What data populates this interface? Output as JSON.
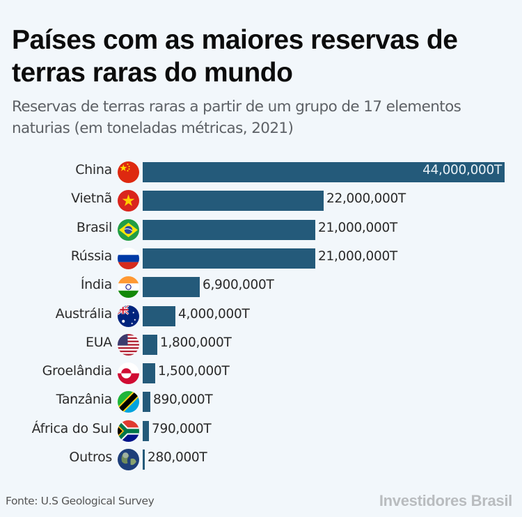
{
  "header": {
    "title": "Países com as maiores reservas de terras raras do mundo",
    "subtitle": "Reservas de terras raras a partir de um grupo de 17 elementos naturias (em toneladas métricas, 2021)"
  },
  "footer": {
    "source": "Fonte: U.S Geological Survey",
    "brand": "Investidores Brasil"
  },
  "colors": {
    "bar": "#245a7a",
    "background": "#f2f7fb"
  },
  "rows": [
    {
      "country": "China",
      "flag": "china-flag",
      "value": 44000000,
      "label": "44,000,000T"
    },
    {
      "country": "Vietnã",
      "flag": "vietnam-flag",
      "value": 22000000,
      "label": "22,000,000T"
    },
    {
      "country": "Brasil",
      "flag": "brazil-flag",
      "value": 21000000,
      "label": "21,000,000T"
    },
    {
      "country": "Rússia",
      "flag": "russia-flag",
      "value": 21000000,
      "label": "21,000,000T"
    },
    {
      "country": "Índia",
      "flag": "india-flag",
      "value": 6900000,
      "label": "6,900,000T"
    },
    {
      "country": "Austrália",
      "flag": "australia-flag",
      "value": 4000000,
      "label": "4,000,000T"
    },
    {
      "country": "EUA",
      "flag": "usa-flag",
      "value": 1800000,
      "label": "1,800,000T"
    },
    {
      "country": "Groelândia",
      "flag": "greenland-flag",
      "value": 1500000,
      "label": "1,500,000T"
    },
    {
      "country": "Tanzânia",
      "flag": "tanzania-flag",
      "value": 890000,
      "label": "890,000T"
    },
    {
      "country": "África do Sul",
      "flag": "south-africa-flag",
      "value": 790000,
      "label": "790,000T"
    },
    {
      "country": "Outros",
      "flag": "globe-icon",
      "value": 280000,
      "label": "280,000T"
    }
  ],
  "chart_data": {
    "type": "bar",
    "orientation": "horizontal",
    "title": "Países com as maiores reservas de terras raras do mundo",
    "subtitle": "Reservas de terras raras a partir de um grupo de 17 elementos naturias (em toneladas métricas, 2021)",
    "categories": [
      "China",
      "Vietnã",
      "Brasil",
      "Rússia",
      "Índia",
      "Austrália",
      "EUA",
      "Groelândia",
      "Tanzânia",
      "África do Sul",
      "Outros"
    ],
    "values": [
      44000000,
      22000000,
      21000000,
      21000000,
      6900000,
      4000000,
      1800000,
      1500000,
      890000,
      790000,
      280000
    ],
    "value_labels": [
      "44,000,000T",
      "22,000,000T",
      "21,000,000T",
      "21,000,000T",
      "6,900,000T",
      "4,000,000T",
      "1,800,000T",
      "1,500,000T",
      "890,000T",
      "790,000T",
      "280,000T"
    ],
    "xlabel": "",
    "ylabel": "",
    "unit": "toneladas métricas",
    "grid": false,
    "legend": null,
    "source": "Fonte: U.S Geological Survey"
  }
}
